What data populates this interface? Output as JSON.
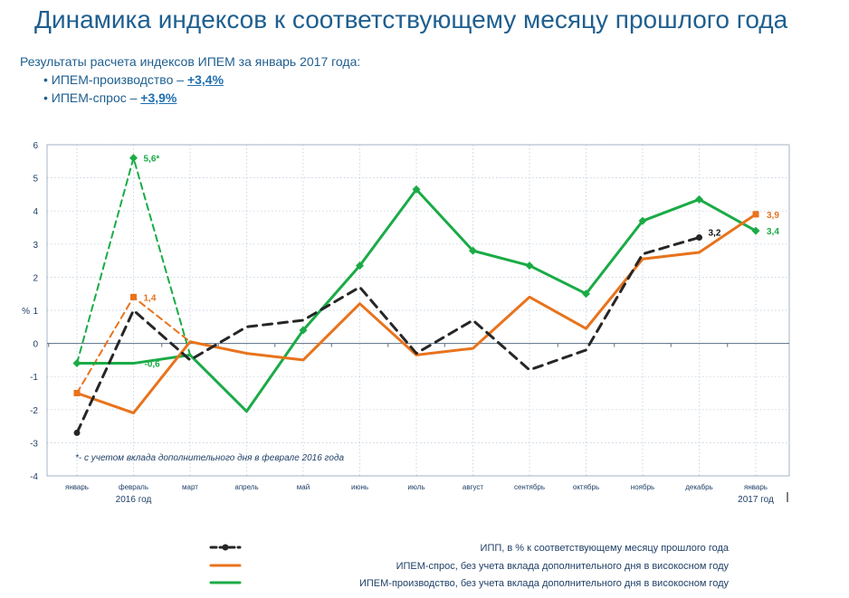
{
  "title": "Динамика индексов к соответствующему месяцу прошлого года",
  "summary": {
    "intro": "Результаты расчета индексов ИПЕМ за январь 2017 года:",
    "items": [
      {
        "label": "• ИПЕМ-производство – ",
        "value": "+3,4%"
      },
      {
        "label": "• ИПЕМ-спрос – ",
        "value": "+3,9%"
      }
    ]
  },
  "chart_data": {
    "type": "line",
    "ylabel": "%",
    "ylim": [
      -4,
      6
    ],
    "yticks": [
      "-4",
      "-3",
      "-2",
      "-1",
      "0",
      "1",
      "2",
      "3",
      "4",
      "5",
      "6"
    ],
    "categories": [
      "январь",
      "февраль",
      "март",
      "апрель",
      "май",
      "июнь",
      "июль",
      "август",
      "сентябрь",
      "октябрь",
      "ноябрь",
      "декабрь",
      "январь"
    ],
    "year_labels": [
      "2016 год",
      "2017 год"
    ],
    "note": "*- с учетом вклада дополнительного дня в феврале 2016 года",
    "series": [
      {
        "name": "ИПП, в % к соответствующему месяцу прошлого года",
        "color": "#262626",
        "values": [
          -2.7,
          1.0,
          -0.5,
          0.5,
          0.7,
          1.7,
          -0.3,
          0.7,
          -0.8,
          -0.2,
          2.7,
          3.2,
          null
        ],
        "end_label": "3,2"
      },
      {
        "name": "ИПЕМ-спрос, без учета вклада дополнительного дня в високосном году",
        "color": "#e8731c",
        "values": [
          -1.5,
          -2.1,
          0.05,
          -0.3,
          -0.5,
          1.2,
          -0.35,
          -0.15,
          1.4,
          0.45,
          2.55,
          2.75,
          3.9
        ],
        "alt_values": [
          -1.5,
          1.4,
          0.05
        ],
        "alt_label": "1,4",
        "end_label": "3,9"
      },
      {
        "name": "ИПЕМ-производство, без учета вклада дополнительного дня в високосном году",
        "color": "#1aab46",
        "values": [
          -0.6,
          -0.6,
          -0.35,
          -2.05,
          0.4,
          2.35,
          4.65,
          2.8,
          2.35,
          1.5,
          3.7,
          4.35,
          3.4
        ],
        "alt_values": [
          -0.6,
          5.6,
          -0.35
        ],
        "alt_label": "5,6*",
        "point_label": "-0,6",
        "end_label": "3,4"
      }
    ]
  }
}
